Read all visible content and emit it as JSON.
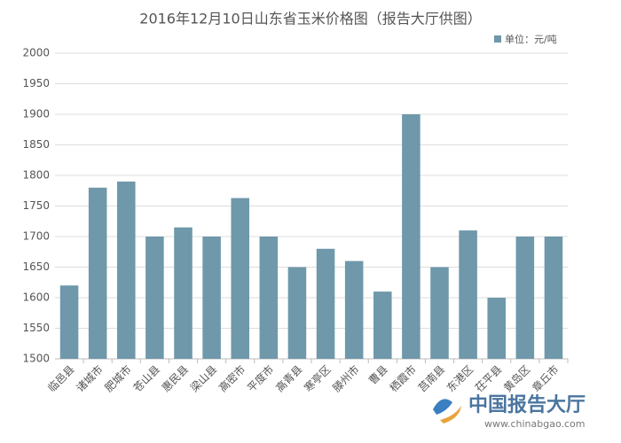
{
  "chart_data": {
    "type": "bar",
    "title": "2016年12月10日山东省玉米价格图（报告大厅供图）",
    "legend_label": "单位：元/吨",
    "categories": [
      "临邑县",
      "诸城市",
      "肥城市",
      "苍山县",
      "惠民县",
      "梁山县",
      "高密市",
      "平度市",
      "高青县",
      "寒亭区",
      "滕州市",
      "曹县",
      "栖霞市",
      "莒南县",
      "东港区",
      "茌平县",
      "黄岛区",
      "章丘市"
    ],
    "values": [
      1620,
      1780,
      1790,
      1700,
      1715,
      1700,
      1763,
      1700,
      1650,
      1680,
      1660,
      1610,
      1900,
      1650,
      1710,
      1600,
      1700,
      1700
    ],
    "color": "#6f98aa",
    "ylim": [
      1500,
      2000
    ],
    "yticks": [
      1500,
      1550,
      1600,
      1650,
      1700,
      1750,
      1800,
      1850,
      1900,
      1950,
      2000
    ],
    "grid": true,
    "legend_position": "top-right"
  },
  "watermark": {
    "brand": "中国报告大厅",
    "url": "www.chinabgao.com"
  }
}
